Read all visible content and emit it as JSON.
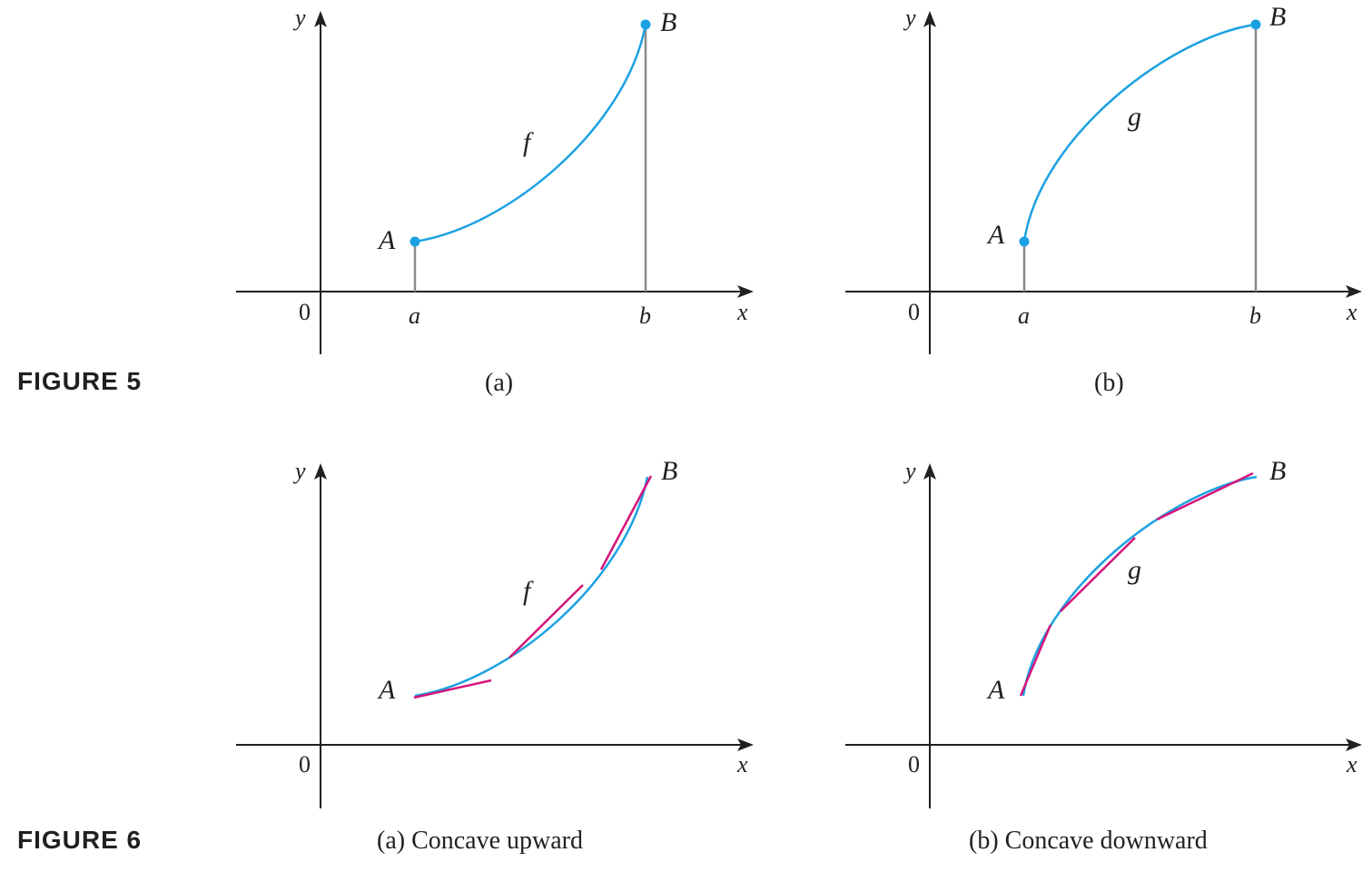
{
  "figure5": {
    "label": "FIGURE 5",
    "panel_a": {
      "caption": "(a)",
      "y_label": "y",
      "x_label": "x",
      "origin": "0",
      "point_start": "A",
      "point_end": "B",
      "tick_start": "a",
      "tick_end": "b",
      "curve_label": "f"
    },
    "panel_b": {
      "caption": "(b)",
      "y_label": "y",
      "x_label": "x",
      "origin": "0",
      "point_start": "A",
      "point_end": "B",
      "tick_start": "a",
      "tick_end": "b",
      "curve_label": "g"
    }
  },
  "figure6": {
    "label": "FIGURE 6",
    "panel_a": {
      "caption": "(a) Concave upward",
      "y_label": "y",
      "x_label": "x",
      "origin": "0",
      "point_start": "A",
      "point_end": "B",
      "curve_label": "f"
    },
    "panel_b": {
      "caption": "(b) Concave downward",
      "y_label": "y",
      "x_label": "x",
      "origin": "0",
      "point_start": "A",
      "point_end": "B",
      "curve_label": "g"
    }
  },
  "colors": {
    "curve": "#1ba1e2",
    "tangent": "#d4147a",
    "axis": "#231f20",
    "guide": "#8a8a8a"
  }
}
